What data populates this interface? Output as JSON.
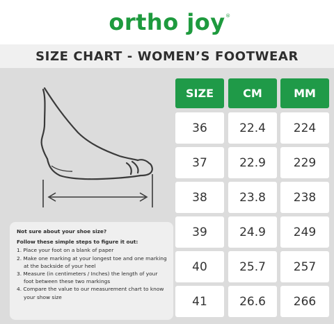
{
  "brand": {
    "name": "ortho joy",
    "registered": "®"
  },
  "title": "SIZE CHART - WOMEN’S FOOTWEAR",
  "illustration": {
    "name": "foot-measurement-diagram"
  },
  "instructions": {
    "question": "Not sure about your shoe size?",
    "lead": "Follow these simple steps to figure it out:",
    "steps": [
      "1. Place your foot on a blank of paper",
      "2. Make one marking at your longest toe and one marking at the backside of your heel",
      "3. Measure (in centimeters / Inches) the length of your foot between these two markings",
      "4. Compare the value to our measurement chart to know your show size"
    ]
  },
  "chart_data": {
    "type": "table",
    "columns": [
      "SIZE",
      "CM",
      "MM"
    ],
    "rows": [
      [
        "36",
        "22.4",
        "224"
      ],
      [
        "37",
        "22.9",
        "229"
      ],
      [
        "38",
        "23.8",
        "238"
      ],
      [
        "39",
        "24.9",
        "249"
      ],
      [
        "40",
        "25.7",
        "257"
      ],
      [
        "41",
        "26.6",
        "266"
      ]
    ]
  },
  "colors": {
    "accent": "#1f9a48",
    "logo": "#1e9a3e",
    "panel": "#dcdcdc",
    "cell": "#ffffff"
  }
}
